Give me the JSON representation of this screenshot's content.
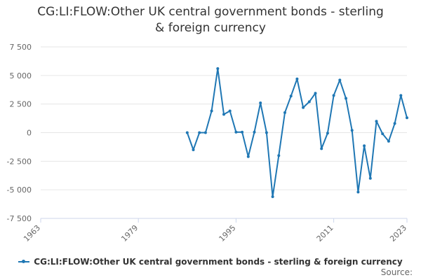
{
  "chart_data": {
    "type": "line",
    "title_lines": [
      "CG:LI:FLOW:Other UK central government bonds - sterling",
      "& foreign currency"
    ],
    "x_ticks": [
      "1963",
      "1979",
      "1995",
      "2011",
      "2023"
    ],
    "y_ticks": [
      "7 500",
      "5 000",
      "2 500",
      "0",
      "-2 500",
      "-5 000",
      "-7 500"
    ],
    "xlim": [
      1963,
      2023
    ],
    "ylim": [
      -7500,
      7500
    ],
    "grid": true,
    "legend_position": "bottom",
    "series": [
      {
        "name": "CG:LI:FLOW:Other UK central government bonds - sterling & foreign currency",
        "color": "#1f77b4",
        "x": [
          1987,
          1988,
          1989,
          1990,
          1991,
          1992,
          1993,
          1994,
          1995,
          1996,
          1997,
          1998,
          1999,
          2000,
          2001,
          2002,
          2003,
          2004,
          2005,
          2006,
          2007,
          2008,
          2009,
          2010,
          2011,
          2012,
          2013,
          2014,
          2015,
          2016,
          2017,
          2018,
          2019,
          2020,
          2021,
          2022,
          2023
        ],
        "values": [
          0,
          -1500,
          0,
          0,
          1900,
          5600,
          1600,
          1900,
          50,
          50,
          -2100,
          50,
          2600,
          0,
          -5600,
          -2000,
          1750,
          3200,
          4700,
          2200,
          2700,
          3450,
          -1400,
          -50,
          3250,
          4600,
          3000,
          200,
          -5200,
          -1150,
          -4000,
          1000,
          -100,
          -750,
          800,
          3250,
          1300
        ]
      }
    ]
  },
  "legend_label": "CG:LI:FLOW:Other UK central government bonds - sterling & foreign currency",
  "source_label": "Source:"
}
